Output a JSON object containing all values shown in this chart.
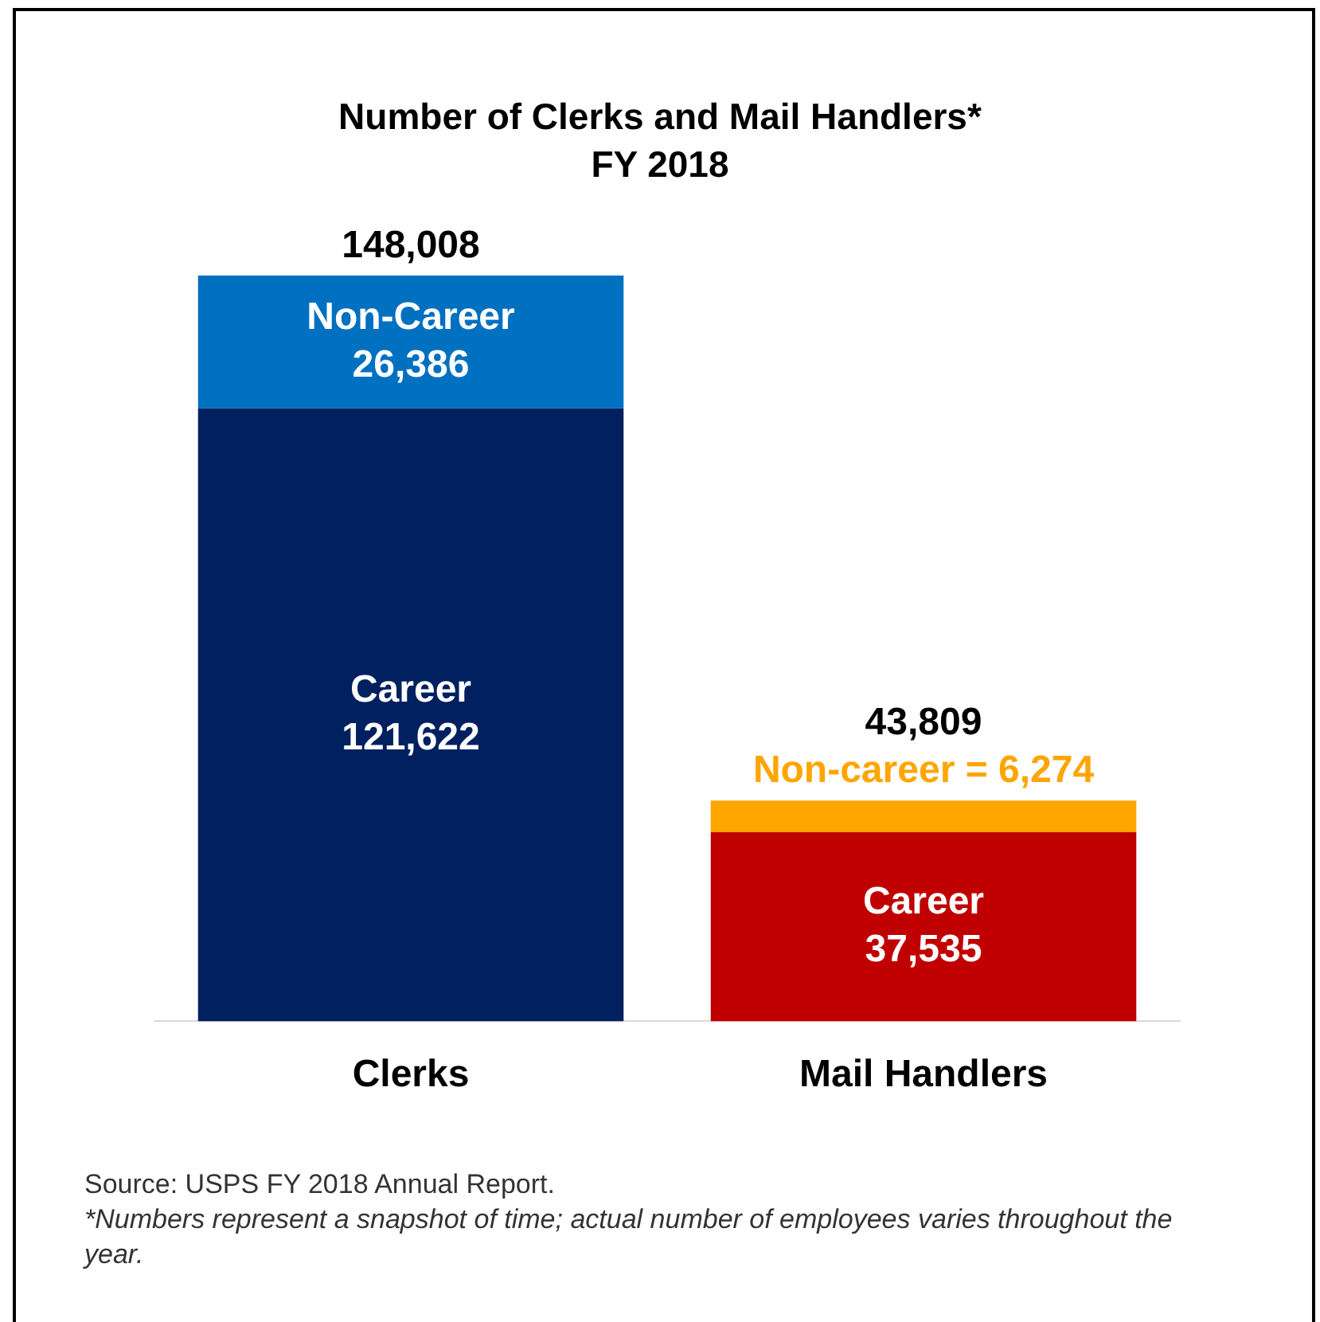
{
  "chart_data": {
    "type": "bar",
    "title": "Number of Clerks and Mail Handlers*\nFY 2018",
    "categories": [
      "Clerks",
      "Mail Handlers"
    ],
    "stacked": true,
    "series": [
      {
        "colors": [
          "#002060",
          "#c00000"
        ],
        "values": [
          121622,
          37535
        ],
        "value_labels": [
          "Career\n121,622",
          "Career\n37,535"
        ]
      },
      {
        "colors": [
          "#0070c0",
          "#ffa500"
        ],
        "values": [
          26386,
          6274
        ],
        "value_labels": [
          "Non-Career\n26,386",
          "Non-career = 6,274"
        ]
      }
    ],
    "totals": [
      "148,008",
      "43,809"
    ],
    "grid": false,
    "legend": false,
    "annotations": [
      "Source: USPS FY 2018 Annual Report.",
      "*Numbers represent a snapshot of time; actual number of employees varies throughout the year."
    ]
  }
}
